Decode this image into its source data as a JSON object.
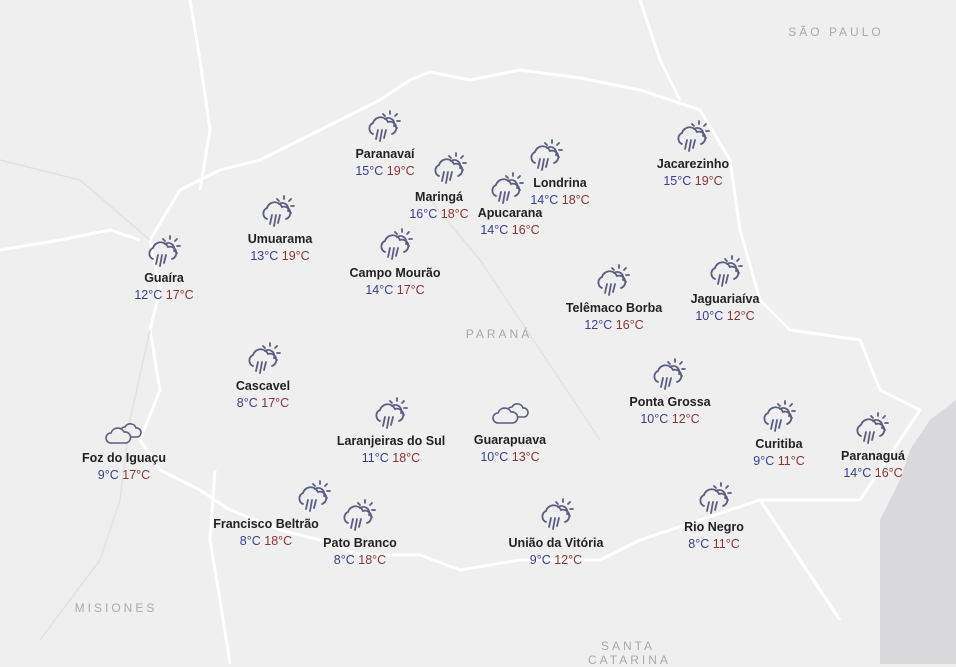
{
  "map": {
    "regions": [
      {
        "label": "SÃO PAULO"
      },
      {
        "label": "PARANÁ"
      },
      {
        "label": "MISIONES"
      },
      {
        "label": "SANTA CATARINA"
      }
    ],
    "colors": {
      "min_temp": "#393e8c",
      "max_temp": "#8b3434",
      "icon": "#5a5e80",
      "land": "#efefef",
      "sea": "#d9d9dd"
    },
    "cities": [
      {
        "name": "Paranavaí",
        "min": "15°C",
        "max": "19°C",
        "icon": "sun-cloud-rain-icon"
      },
      {
        "name": "Maringá",
        "min": "16°C",
        "max": "18°C",
        "icon": "sun-cloud-rain-icon"
      },
      {
        "name": "Londrina",
        "min": "14°C",
        "max": "18°C",
        "icon": "sun-cloud-rain-icon"
      },
      {
        "name": "Apucarana",
        "min": "14°C",
        "max": "16°C",
        "icon": "sun-cloud-rain-icon"
      },
      {
        "name": "Jacarezinho",
        "min": "15°C",
        "max": "19°C",
        "icon": "sun-cloud-rain-icon"
      },
      {
        "name": "Umuarama",
        "min": "13°C",
        "max": "19°C",
        "icon": "sun-cloud-rain-icon"
      },
      {
        "name": "Guaíra",
        "min": "12°C",
        "max": "17°C",
        "icon": "sun-cloud-rain-icon"
      },
      {
        "name": "Campo Mourão",
        "min": "14°C",
        "max": "17°C",
        "icon": "sun-cloud-rain-icon"
      },
      {
        "name": "Telêmaco Borba",
        "min": "12°C",
        "max": "16°C",
        "icon": "sun-cloud-rain-icon"
      },
      {
        "name": "Jaguariaíva",
        "min": "10°C",
        "max": "12°C",
        "icon": "sun-cloud-rain-icon"
      },
      {
        "name": "Cascavel",
        "min": "8°C",
        "max": "17°C",
        "icon": "sun-cloud-rain-icon"
      },
      {
        "name": "Ponta Grossa",
        "min": "10°C",
        "max": "12°C",
        "icon": "sun-cloud-rain-icon"
      },
      {
        "name": "Laranjeiras do Sul",
        "min": "11°C",
        "max": "18°C",
        "icon": "sun-cloud-rain-icon"
      },
      {
        "name": "Guarapuava",
        "min": "10°C",
        "max": "13°C",
        "icon": "cloudy-icon"
      },
      {
        "name": "Curitiba",
        "min": "9°C",
        "max": "11°C",
        "icon": "sun-cloud-rain-icon"
      },
      {
        "name": "Paranaguá",
        "min": "14°C",
        "max": "16°C",
        "icon": "sun-cloud-rain-icon"
      },
      {
        "name": "Foz do Iguaçu",
        "min": "9°C",
        "max": "17°C",
        "icon": "cloudy-icon"
      },
      {
        "name": "Francisco Beltrão",
        "min": "8°C",
        "max": "18°C",
        "icon": "sun-cloud-rain-icon"
      },
      {
        "name": "Pato Branco",
        "min": "8°C",
        "max": "18°C",
        "icon": "sun-cloud-rain-icon"
      },
      {
        "name": "União da Vitória",
        "min": "9°C",
        "max": "12°C",
        "icon": "sun-cloud-rain-icon"
      },
      {
        "name": "Rio Negro",
        "min": "8°C",
        "max": "11°C",
        "icon": "sun-cloud-rain-icon"
      }
    ]
  }
}
